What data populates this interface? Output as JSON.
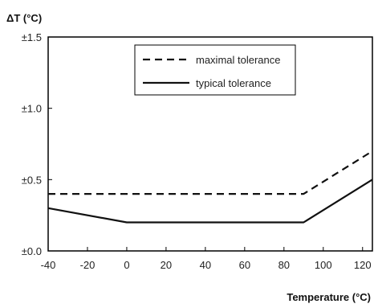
{
  "chart_data": {
    "type": "line",
    "title": "",
    "ylabel": "ΔT (°C)",
    "xlabel": "Temperature (°C)",
    "xlim": [
      -40,
      125
    ],
    "ylim": [
      0,
      1.5
    ],
    "x_ticks": [
      -40,
      -20,
      0,
      20,
      40,
      60,
      80,
      100,
      120
    ],
    "x_tick_labels": [
      "-40",
      "-20",
      "0",
      "20",
      "40",
      "60",
      "80",
      "100",
      "120"
    ],
    "y_ticks": [
      0,
      0.5,
      1.0,
      1.5
    ],
    "y_tick_labels": [
      "±0.0",
      "±0.5",
      "±1.0",
      "±1.5"
    ],
    "grid": false,
    "legend_position": "top-right",
    "series": [
      {
        "name": "maximal tolerance",
        "style": "dashed",
        "color": "#111111",
        "x": [
          -40,
          90,
          125
        ],
        "y": [
          0.4,
          0.4,
          0.7
        ]
      },
      {
        "name": "typical tolerance",
        "style": "solid",
        "color": "#111111",
        "x": [
          -40,
          0,
          90,
          125
        ],
        "y": [
          0.3,
          0.2,
          0.2,
          0.5
        ]
      }
    ]
  }
}
